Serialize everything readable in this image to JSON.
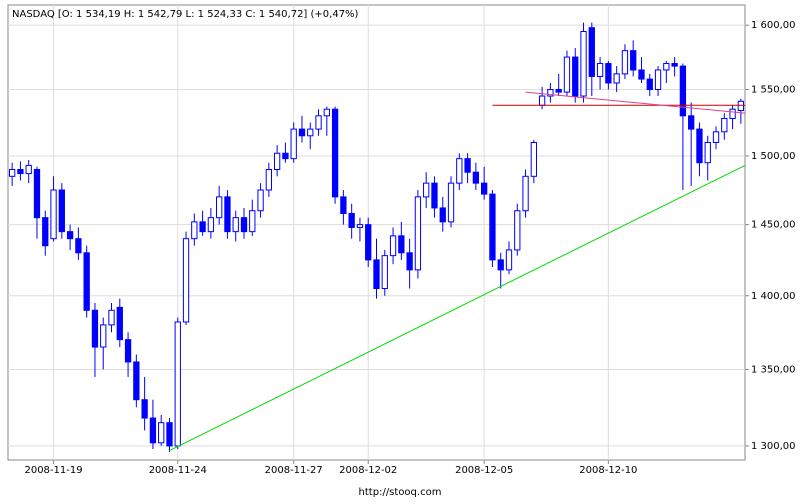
{
  "chart_data": {
    "type": "candlestick",
    "title": "NASDAQ [O: 1 534,19  H: 1 542,79  L: 1 524,33  C: 1 540,72] (+0,47%)",
    "footer": "http://stooq.com",
    "up_color": "#ffffff",
    "down_color": "#0000ff",
    "outline_color": "#0000ff",
    "log_scale": true,
    "grid": true,
    "ylim": [
      1291,
      1616
    ],
    "yticks": [
      {
        "value": 1300,
        "label": "1 300,00"
      },
      {
        "value": 1350,
        "label": "1 350,00"
      },
      {
        "value": 1400,
        "label": "1 400,00"
      },
      {
        "value": 1450,
        "label": "1 450,00"
      },
      {
        "value": 1500,
        "label": "1 500,00"
      },
      {
        "value": 1550,
        "label": "1 550,00"
      },
      {
        "value": 1600,
        "label": "1 600,00"
      }
    ],
    "categories": [
      null,
      null,
      null,
      null,
      null,
      "2008-11-19",
      null,
      null,
      null,
      null,
      null,
      null,
      null,
      null,
      null,
      null,
      null,
      null,
      null,
      null,
      "2008-11-24",
      null,
      null,
      null,
      null,
      null,
      null,
      null,
      null,
      null,
      null,
      null,
      null,
      null,
      "2008-11-27",
      null,
      null,
      null,
      null,
      null,
      null,
      null,
      null,
      "2008-12-02",
      null,
      null,
      null,
      null,
      null,
      null,
      null,
      null,
      null,
      null,
      null,
      null,
      null,
      "2008-12-05",
      null,
      null,
      null,
      null,
      null,
      null,
      null,
      null,
      null,
      null,
      null,
      null,
      null,
      null,
      "2008-12-10",
      null,
      null,
      null,
      null,
      null,
      null,
      null,
      null,
      null,
      null,
      null,
      null,
      null,
      null,
      null,
      null
    ],
    "open": [
      1485,
      1490,
      1487,
      1490,
      1455,
      1440,
      1475,
      1445,
      1440,
      1430,
      1390,
      1365,
      1380,
      1392,
      1370,
      1355,
      1330,
      1318,
      1302,
      1315,
      1300,
      1382,
      1440,
      1452,
      1445,
      1455,
      1470,
      1445,
      1455,
      1445,
      1460,
      1475,
      1490,
      1502,
      1498,
      1520,
      1515,
      1520,
      1530,
      1535,
      1470,
      1458,
      1448,
      1450,
      1425,
      1405,
      1428,
      1442,
      1430,
      1418,
      1470,
      1480,
      1462,
      1452,
      1480,
      1498,
      1488,
      1480,
      1472,
      1425,
      1418,
      1432,
      1460,
      1485,
      1538,
      1545,
      1550,
      1548,
      1575,
      1545,
      1598,
      1560,
      1570,
      1555,
      1562,
      1580,
      1565,
      1558,
      1550,
      1565,
      1570,
      1568,
      1530,
      1520,
      1495,
      1510,
      1518,
      1528,
      1534
    ],
    "high": [
      1495,
      1496,
      1497,
      1492,
      1460,
      1485,
      1480,
      1450,
      1448,
      1435,
      1395,
      1385,
      1395,
      1398,
      1375,
      1360,
      1345,
      1330,
      1320,
      1318,
      1385,
      1445,
      1458,
      1460,
      1462,
      1478,
      1475,
      1460,
      1462,
      1468,
      1480,
      1495,
      1508,
      1510,
      1525,
      1530,
      1525,
      1535,
      1537,
      1537,
      1475,
      1465,
      1455,
      1455,
      1440,
      1432,
      1448,
      1452,
      1440,
      1475,
      1488,
      1485,
      1470,
      1485,
      1502,
      1502,
      1495,
      1492,
      1475,
      1430,
      1438,
      1465,
      1490,
      1512,
      1552,
      1555,
      1562,
      1580,
      1582,
      1602,
      1602,
      1575,
      1572,
      1568,
      1585,
      1588,
      1575,
      1562,
      1568,
      1572,
      1575,
      1570,
      1540,
      1525,
      1515,
      1522,
      1532,
      1538,
      1543
    ],
    "low": [
      1478,
      1482,
      1480,
      1440,
      1428,
      1438,
      1440,
      1432,
      1425,
      1385,
      1345,
      1350,
      1375,
      1365,
      1345,
      1325,
      1310,
      1298,
      1300,
      1296,
      1298,
      1380,
      1435,
      1442,
      1440,
      1450,
      1440,
      1438,
      1440,
      1442,
      1455,
      1470,
      1485,
      1495,
      1495,
      1510,
      1505,
      1515,
      1515,
      1465,
      1450,
      1440,
      1438,
      1420,
      1398,
      1400,
      1422,
      1425,
      1405,
      1412,
      1462,
      1455,
      1445,
      1448,
      1475,
      1480,
      1475,
      1468,
      1420,
      1405,
      1415,
      1428,
      1455,
      1480,
      1535,
      1540,
      1545,
      1545,
      1540,
      1540,
      1545,
      1550,
      1550,
      1548,
      1558,
      1560,
      1555,
      1545,
      1545,
      1555,
      1560,
      1475,
      1478,
      1485,
      1482,
      1505,
      1512,
      1520,
      1524
    ],
    "close": [
      1490,
      1487,
      1493,
      1455,
      1435,
      1475,
      1445,
      1440,
      1430,
      1390,
      1365,
      1380,
      1390,
      1370,
      1355,
      1330,
      1318,
      1302,
      1315,
      1300,
      1382,
      1440,
      1452,
      1445,
      1455,
      1470,
      1445,
      1455,
      1445,
      1460,
      1475,
      1490,
      1502,
      1498,
      1520,
      1515,
      1520,
      1530,
      1535,
      1470,
      1458,
      1448,
      1450,
      1425,
      1405,
      1428,
      1442,
      1430,
      1418,
      1470,
      1480,
      1462,
      1452,
      1480,
      1498,
      1488,
      1480,
      1472,
      1425,
      1418,
      1432,
      1460,
      1485,
      1510,
      1545,
      1550,
      1548,
      1575,
      1545,
      1595,
      1560,
      1570,
      1555,
      1562,
      1580,
      1565,
      1558,
      1550,
      1565,
      1570,
      1568,
      1530,
      1520,
      1495,
      1510,
      1518,
      1528,
      1535,
      1541
    ],
    "trendlines": [
      {
        "color": "#00dd00",
        "x": [
          19,
          88.5
        ],
        "y": [
          1297,
          1493
        ]
      },
      {
        "color": "#cc0000",
        "x": [
          58,
          88.5
        ],
        "y": [
          1538,
          1538
        ]
      },
      {
        "color": "#dd4488",
        "x": [
          62,
          88.5
        ],
        "y": [
          1548,
          1532
        ]
      }
    ]
  }
}
